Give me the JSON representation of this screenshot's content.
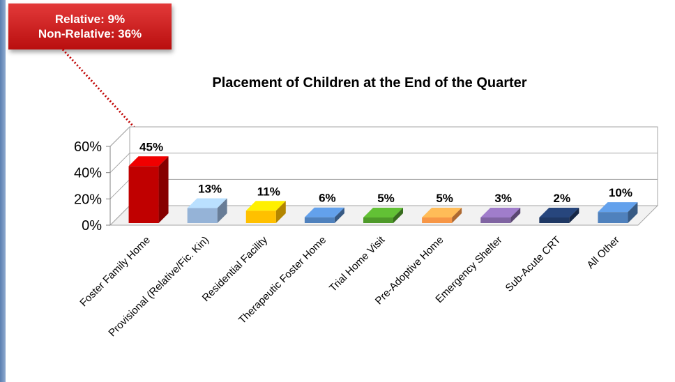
{
  "callout": {
    "line1": "Relative: 9%",
    "line2": "Non-Relative: 36%",
    "color": "#c81818"
  },
  "chart_data": {
    "type": "bar",
    "title": "Placement of Children at the End of the Quarter",
    "categories": [
      "Foster Family Home",
      "Provisional (Relative/Fic. Kin)",
      "Residential Facility",
      "Therapeutic Foster Home",
      "Trial Home Visit",
      "Pre-Adoptive Home",
      "Emergency Shelter",
      "Sub-Acute CRT",
      "All Other"
    ],
    "values": [
      45,
      13,
      11,
      6,
      5,
      5,
      3,
      2,
      10
    ],
    "data_labels": [
      "45%",
      "13%",
      "11%",
      "6%",
      "5%",
      "5%",
      "3%",
      "2%",
      "10%"
    ],
    "colors": [
      "#c00000",
      "#95b3d7",
      "#ffc000",
      "#4f81bd",
      "#4e9a2a",
      "#f79646",
      "#8064a2",
      "#1f3864",
      "#4f81bd"
    ],
    "ylim": [
      0,
      60
    ],
    "yticks": [
      0,
      20,
      40,
      60
    ],
    "ytick_labels": [
      "0%",
      "20%",
      "40%",
      "60%"
    ],
    "xlabel": "",
    "ylabel": "",
    "grid": true,
    "legend": "none",
    "three_d": true
  }
}
